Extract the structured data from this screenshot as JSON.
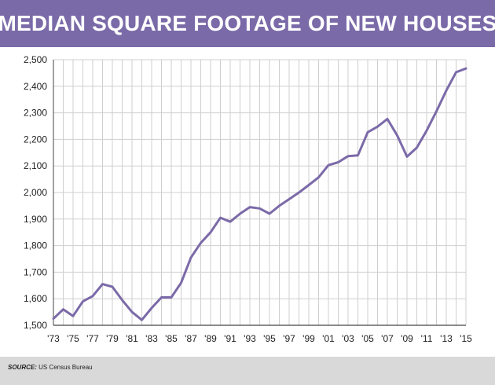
{
  "header": {
    "title": "MEDIAN SQUARE FOOTAGE OF NEW HOUSES"
  },
  "footer": {
    "source_label": "SOURCE:",
    "source_text": " US Census Bureau"
  },
  "colors": {
    "accent": "#7b6aa8",
    "line": "#7b6aa8",
    "grid": "#cfcfcf",
    "footer_bg": "#d9d9d9"
  },
  "chart_data": {
    "type": "line",
    "title": "MEDIAN SQUARE FOOTAGE OF NEW HOUSES",
    "xlabel": "",
    "ylabel": "",
    "ylim": [
      1500,
      2500
    ],
    "xlim": [
      1973,
      2015
    ],
    "grid": true,
    "y_ticks": [
      1500,
      1600,
      1700,
      1800,
      1900,
      2000,
      2100,
      2200,
      2300,
      2400,
      2500
    ],
    "y_tick_labels": [
      "1,500",
      "1,600",
      "1,700",
      "1,800",
      "1,900",
      "2,000",
      "2,100",
      "2,200",
      "2,300",
      "2,400",
      "2,500"
    ],
    "x_ticks": [
      1973,
      1975,
      1977,
      1979,
      1981,
      1983,
      1985,
      1987,
      1989,
      1991,
      1993,
      1995,
      1997,
      1999,
      2001,
      2003,
      2005,
      2007,
      2009,
      2011,
      2013,
      2015
    ],
    "x_tick_labels": [
      "'73",
      "'75",
      "'77",
      "'79",
      "'81",
      "'83",
      "'85",
      "'87",
      "'89",
      "'91",
      "'93",
      "'95",
      "'97",
      "'99",
      "'01",
      "'03",
      "'05",
      "'07",
      "'09",
      "'11",
      "'13",
      "'15"
    ],
    "series": [
      {
        "x": [
          1973,
          1974,
          1975,
          1976,
          1977,
          1978,
          1979,
          1980,
          1981,
          1982,
          1983,
          1984,
          1985,
          1986,
          1987,
          1988,
          1989,
          1990,
          1991,
          1992,
          1993,
          1994,
          1995,
          1996,
          1997,
          1998,
          1999,
          2000,
          2001,
          2002,
          2003,
          2004,
          2005,
          2006,
          2007,
          2008,
          2009,
          2010,
          2011,
          2012,
          2013,
          2014,
          2015
        ],
        "values": [
          1525,
          1560,
          1535,
          1590,
          1610,
          1655,
          1645,
          1595,
          1550,
          1520,
          1565,
          1605,
          1605,
          1660,
          1755,
          1810,
          1850,
          1905,
          1890,
          1920,
          1945,
          1940,
          1920,
          1950,
          1975,
          2000,
          2028,
          2057,
          2103,
          2114,
          2137,
          2140,
          2227,
          2248,
          2277,
          2215,
          2135,
          2169,
          2233,
          2306,
          2384,
          2453,
          2467
        ]
      }
    ]
  }
}
